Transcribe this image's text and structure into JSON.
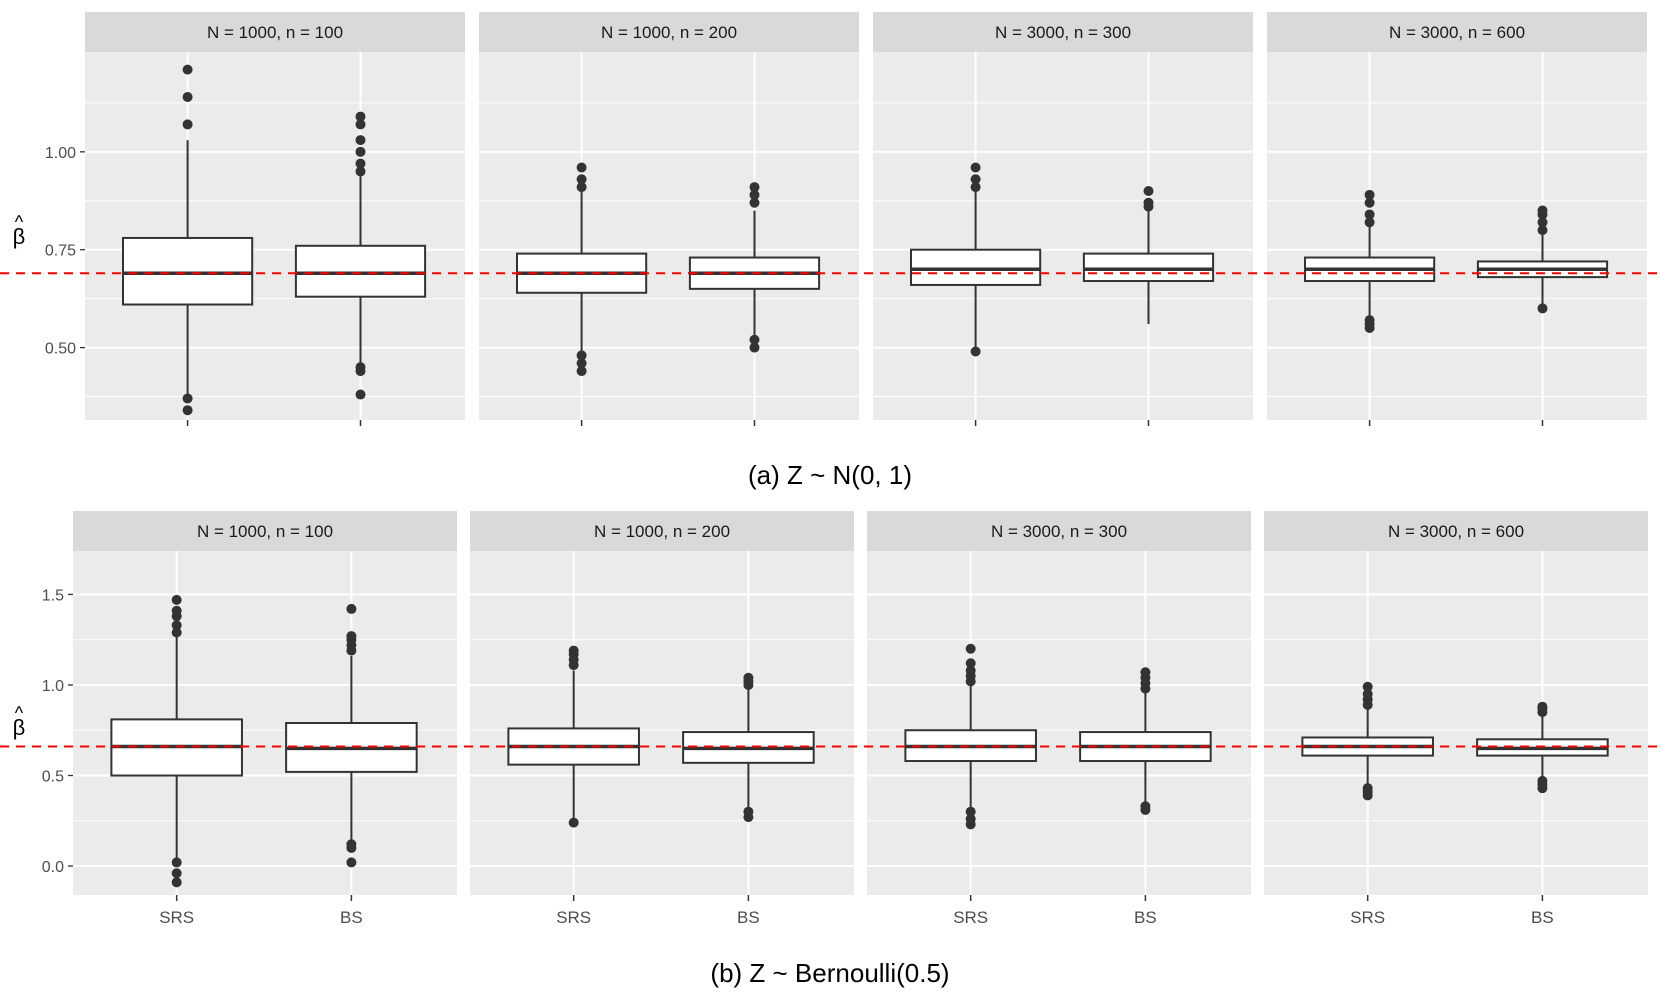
{
  "chart_data": [
    {
      "type": "boxplot",
      "caption": "(a) Z ~ N(0, 1)",
      "ylabel": "β",
      "ylabel_accent": "^",
      "yticks": [
        0.5,
        0.75,
        1.0
      ],
      "ytick_labels": [
        "0.50",
        "0.75",
        "1.00"
      ],
      "ylim": [
        0.315,
        1.255
      ],
      "reference_line": 0.69,
      "reference_color": "#ff0000",
      "categories": [
        "SRS",
        "BS"
      ],
      "show_x_labels": false,
      "facets": [
        {
          "label": "N = 1000, n = 100",
          "boxes": [
            {
              "category": "SRS",
              "whisker_low": 0.37,
              "q1": 0.61,
              "median": 0.69,
              "q3": 0.78,
              "whisker_high": 1.03,
              "outliers": [
                0.34,
                0.37,
                1.07,
                1.14,
                1.21
              ]
            },
            {
              "category": "BS",
              "whisker_low": 0.45,
              "q1": 0.63,
              "median": 0.69,
              "q3": 0.76,
              "whisker_high": 0.94,
              "outliers": [
                0.38,
                0.44,
                0.45,
                0.95,
                0.97,
                1.0,
                1.03,
                1.07,
                1.09
              ]
            }
          ]
        },
        {
          "label": "N = 1000, n = 200",
          "boxes": [
            {
              "category": "SRS",
              "whisker_low": 0.48,
              "q1": 0.64,
              "median": 0.69,
              "q3": 0.74,
              "whisker_high": 0.9,
              "outliers": [
                0.44,
                0.46,
                0.48,
                0.91,
                0.93,
                0.96
              ]
            },
            {
              "category": "BS",
              "whisker_low": 0.53,
              "q1": 0.65,
              "median": 0.69,
              "q3": 0.73,
              "whisker_high": 0.85,
              "outliers": [
                0.5,
                0.52,
                0.87,
                0.89,
                0.91
              ]
            }
          ]
        },
        {
          "label": "N = 3000, n = 300",
          "boxes": [
            {
              "category": "SRS",
              "whisker_low": 0.5,
              "q1": 0.66,
              "median": 0.7,
              "q3": 0.75,
              "whisker_high": 0.9,
              "outliers": [
                0.49,
                0.91,
                0.93,
                0.96
              ]
            },
            {
              "category": "BS",
              "whisker_low": 0.56,
              "q1": 0.67,
              "median": 0.7,
              "q3": 0.74,
              "whisker_high": 0.85,
              "outliers": [
                0.86,
                0.87,
                0.9
              ]
            }
          ]
        },
        {
          "label": "N = 3000, n = 600",
          "boxes": [
            {
              "category": "SRS",
              "whisker_low": 0.58,
              "q1": 0.67,
              "median": 0.7,
              "q3": 0.73,
              "whisker_high": 0.82,
              "outliers": [
                0.55,
                0.56,
                0.57,
                0.82,
                0.84,
                0.87,
                0.89
              ]
            },
            {
              "category": "BS",
              "whisker_low": 0.6,
              "q1": 0.68,
              "median": 0.7,
              "q3": 0.72,
              "whisker_high": 0.79,
              "outliers": [
                0.6,
                0.8,
                0.82,
                0.84,
                0.85
              ]
            }
          ]
        }
      ]
    },
    {
      "type": "boxplot",
      "caption": "(b) Z ~ Bernoulli(0.5)",
      "ylabel": "β",
      "ylabel_accent": "^",
      "yticks": [
        0.0,
        0.5,
        1.0,
        1.5
      ],
      "ytick_labels": [
        "0.0",
        "0.5",
        "1.0",
        "1.5"
      ],
      "ylim": [
        -0.16,
        1.74
      ],
      "reference_line": 0.66,
      "reference_color": "#ff0000",
      "categories": [
        "SRS",
        "BS"
      ],
      "show_x_labels": true,
      "facets": [
        {
          "label": "N = 1000, n = 100",
          "boxes": [
            {
              "category": "SRS",
              "whisker_low": 0.02,
              "q1": 0.5,
              "median": 0.66,
              "q3": 0.81,
              "whisker_high": 1.27,
              "outliers": [
                -0.09,
                -0.04,
                0.02,
                1.29,
                1.33,
                1.38,
                1.41,
                1.47
              ]
            },
            {
              "category": "BS",
              "whisker_low": 0.13,
              "q1": 0.52,
              "median": 0.65,
              "q3": 0.79,
              "whisker_high": 1.16,
              "outliers": [
                0.02,
                0.1,
                0.12,
                1.19,
                1.22,
                1.25,
                1.27,
                1.42
              ]
            }
          ]
        },
        {
          "label": "N = 1000, n = 200",
          "boxes": [
            {
              "category": "SRS",
              "whisker_low": 0.25,
              "q1": 0.56,
              "median": 0.66,
              "q3": 0.76,
              "whisker_high": 1.08,
              "outliers": [
                0.24,
                1.11,
                1.14,
                1.17,
                1.19
              ]
            },
            {
              "category": "BS",
              "whisker_low": 0.31,
              "q1": 0.57,
              "median": 0.65,
              "q3": 0.74,
              "whisker_high": 0.99,
              "outliers": [
                0.27,
                0.3,
                1.0,
                1.02,
                1.04
              ]
            }
          ]
        },
        {
          "label": "N = 3000, n = 300",
          "boxes": [
            {
              "category": "SRS",
              "whisker_low": 0.3,
              "q1": 0.58,
              "median": 0.66,
              "q3": 0.75,
              "whisker_high": 1.01,
              "outliers": [
                0.23,
                0.26,
                0.3,
                1.02,
                1.05,
                1.08,
                1.12,
                1.2
              ]
            },
            {
              "category": "BS",
              "whisker_low": 0.34,
              "q1": 0.58,
              "median": 0.66,
              "q3": 0.74,
              "whisker_high": 0.97,
              "outliers": [
                0.31,
                0.33,
                0.98,
                1.01,
                1.04,
                1.07
              ]
            }
          ]
        },
        {
          "label": "N = 3000, n = 600",
          "boxes": [
            {
              "category": "SRS",
              "whisker_low": 0.44,
              "q1": 0.61,
              "median": 0.66,
              "q3": 0.71,
              "whisker_high": 0.88,
              "outliers": [
                0.39,
                0.41,
                0.43,
                0.89,
                0.92,
                0.95,
                0.99
              ]
            },
            {
              "category": "BS",
              "whisker_low": 0.47,
              "q1": 0.61,
              "median": 0.65,
              "q3": 0.7,
              "whisker_high": 0.84,
              "outliers": [
                0.43,
                0.45,
                0.47,
                0.85,
                0.87,
                0.88
              ]
            }
          ]
        }
      ]
    }
  ]
}
